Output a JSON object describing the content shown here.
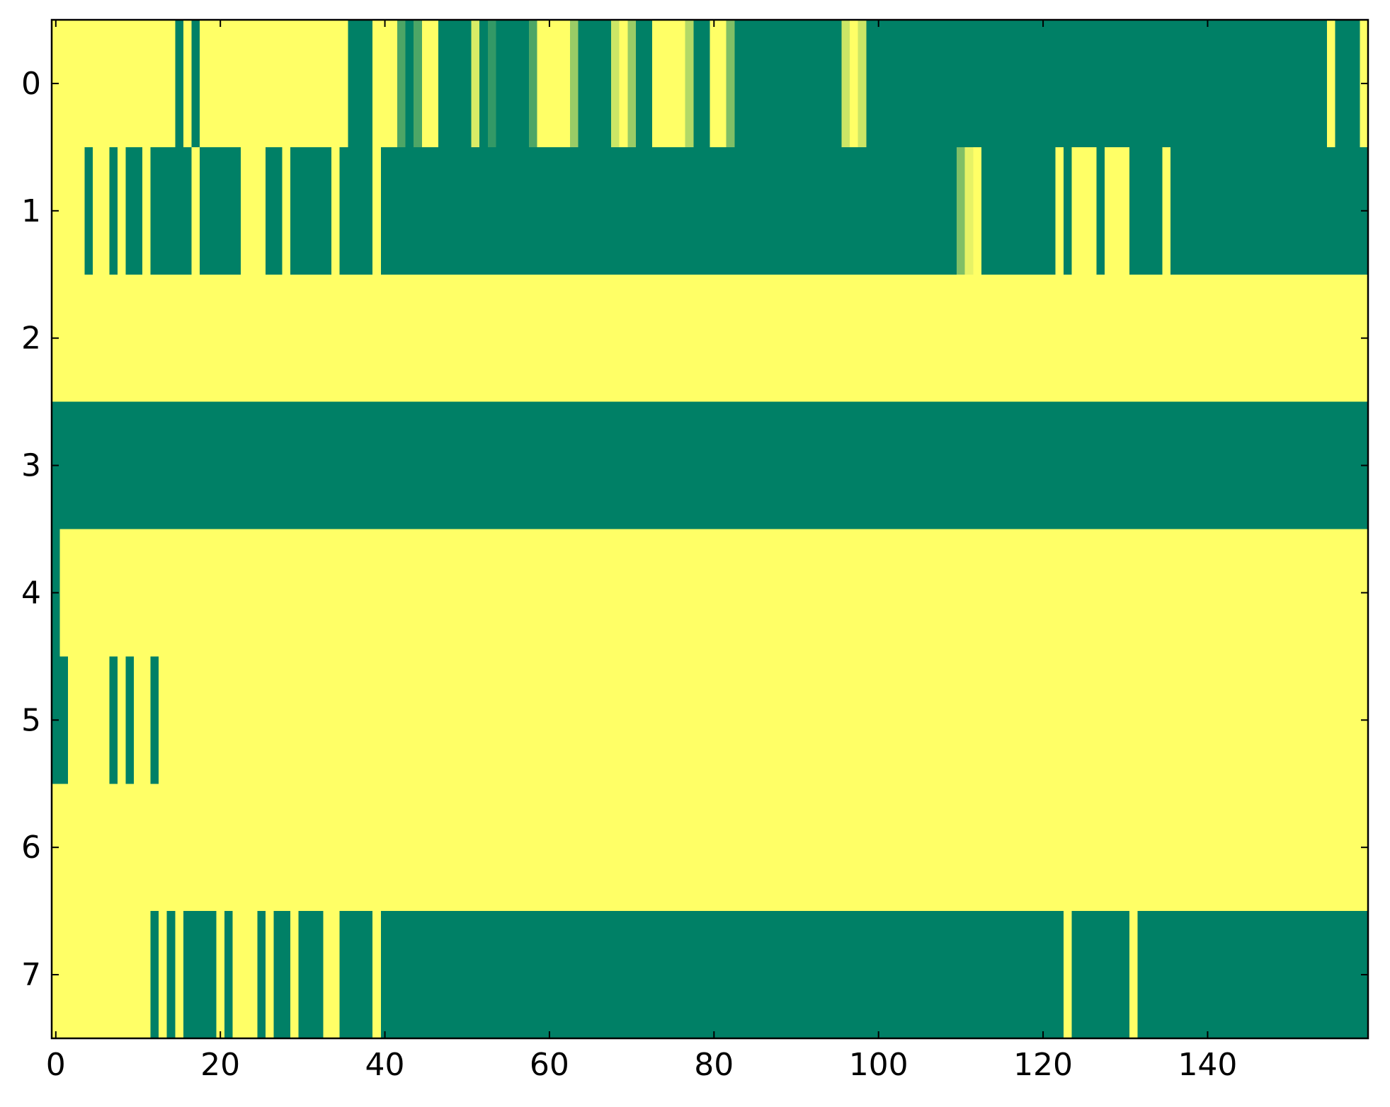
{
  "chart_data": {
    "type": "heatmap",
    "colormap": "summer",
    "xlim": [
      -0.5,
      159.5
    ],
    "ylim": [
      7.5,
      -0.5
    ],
    "xticks": [
      0,
      20,
      40,
      60,
      80,
      100,
      120,
      140
    ],
    "yticks": [
      0,
      1,
      2,
      3,
      4,
      5,
      6,
      7
    ],
    "z": [
      [
        1,
        1,
        1,
        1,
        1,
        1,
        1,
        1,
        1,
        1,
        1,
        1,
        1,
        1,
        1,
        0,
        1,
        0,
        1,
        1,
        1,
        1,
        1,
        1,
        1,
        1,
        1,
        1,
        1,
        1,
        1,
        1,
        1,
        1,
        1,
        1,
        0,
        0,
        0,
        1,
        1,
        1,
        0.3,
        0,
        0.3,
        1,
        1,
        0,
        0,
        0,
        0,
        0.85,
        0,
        0.2,
        0,
        0,
        0,
        0,
        0.3,
        1,
        1,
        1,
        1,
        0.6,
        0,
        0,
        0,
        0,
        0.8,
        1,
        0.6,
        0,
        0,
        1,
        1,
        1,
        1,
        0.7,
        0,
        0,
        1,
        1,
        0.5,
        0,
        0,
        0,
        0,
        0,
        0,
        0,
        0,
        0,
        0,
        0,
        0,
        0,
        0.8,
        1,
        0.8,
        0,
        0,
        0,
        0,
        0,
        0,
        0,
        0,
        0,
        0,
        0,
        0,
        0,
        0,
        0,
        0,
        0,
        0,
        0,
        0,
        0,
        0,
        0,
        0,
        0,
        0,
        0,
        0,
        0,
        0,
        0,
        0,
        0,
        0,
        0,
        0,
        0,
        0,
        0,
        0,
        0,
        0,
        0,
        0,
        0,
        0,
        0,
        0,
        0,
        0,
        0,
        0,
        0,
        0,
        0,
        0,
        1,
        0,
        0,
        0,
        1
      ],
      [
        1,
        1,
        1,
        1,
        0,
        1,
        1,
        0,
        1,
        0,
        0,
        1,
        0,
        0,
        0,
        0,
        0,
        1,
        0,
        0,
        0,
        0,
        0,
        1,
        1,
        1,
        0,
        0,
        1,
        0,
        0,
        0,
        0,
        0,
        1,
        0,
        0,
        0,
        0,
        1,
        0,
        0,
        0,
        0,
        0,
        0,
        0,
        0,
        0,
        0,
        0,
        0,
        0,
        0,
        0,
        0,
        0,
        0,
        0,
        0,
        0,
        0,
        0,
        0,
        0,
        0,
        0,
        0,
        0,
        0,
        0,
        0,
        0,
        0,
        0,
        0,
        0,
        0,
        0,
        0,
        0,
        0,
        0,
        0,
        0,
        0,
        0,
        0,
        0,
        0,
        0,
        0,
        0,
        0,
        0,
        0,
        0,
        0,
        0,
        0,
        0,
        0,
        0,
        0,
        0,
        0,
        0,
        0,
        0,
        0,
        0.5,
        0.9,
        1,
        0,
        0,
        0,
        0,
        0,
        0,
        0,
        0,
        0,
        1,
        0,
        1,
        1,
        1,
        0,
        1,
        1,
        1,
        0,
        0,
        0,
        0,
        1,
        0,
        0,
        0,
        0,
        0,
        0,
        0,
        0,
        0,
        0,
        0,
        0,
        0,
        0,
        0,
        0,
        0,
        0,
        0,
        0,
        0,
        0,
        0,
        0
      ],
      [
        1,
        1,
        1,
        1,
        1,
        1,
        1,
        1,
        1,
        1,
        1,
        1,
        1,
        1,
        1,
        1,
        1,
        1,
        1,
        1,
        1,
        1,
        1,
        1,
        1,
        1,
        1,
        1,
        1,
        1,
        1,
        1,
        1,
        1,
        1,
        1,
        1,
        1,
        1,
        1,
        1,
        1,
        1,
        1,
        1,
        1,
        1,
        1,
        1,
        1,
        1,
        1,
        1,
        1,
        1,
        1,
        1,
        1,
        1,
        1,
        1,
        1,
        1,
        1,
        1,
        1,
        1,
        1,
        1,
        1,
        1,
        1,
        1,
        1,
        1,
        1,
        1,
        1,
        1,
        1,
        1,
        1,
        1,
        1,
        1,
        1,
        1,
        1,
        1,
        1,
        1,
        1,
        1,
        1,
        1,
        1,
        1,
        1,
        1,
        1,
        1,
        1,
        1,
        1,
        1,
        1,
        1,
        1,
        1,
        1,
        1,
        1,
        1,
        1,
        1,
        1,
        1,
        1,
        1,
        1,
        1,
        1,
        1,
        1,
        1,
        1,
        1,
        1,
        1,
        1,
        1,
        1,
        1,
        1,
        1,
        1,
        1,
        1,
        1,
        1,
        1,
        1,
        1,
        1,
        1,
        1,
        1,
        1,
        1,
        1,
        1,
        1,
        1,
        1,
        1,
        1,
        1,
        1,
        1,
        1
      ],
      [
        0,
        0,
        0,
        0,
        0,
        0,
        0,
        0,
        0,
        0,
        0,
        0,
        0,
        0,
        0,
        0,
        0,
        0,
        0,
        0,
        0,
        0,
        0,
        0,
        0,
        0,
        0,
        0,
        0,
        0,
        0,
        0,
        0,
        0,
        0,
        0,
        0,
        0,
        0,
        0,
        0,
        0,
        0,
        0,
        0,
        0,
        0,
        0,
        0,
        0,
        0,
        0,
        0,
        0,
        0,
        0,
        0,
        0,
        0,
        0,
        0,
        0,
        0,
        0,
        0,
        0,
        0,
        0,
        0,
        0,
        0,
        0,
        0,
        0,
        0,
        0,
        0,
        0,
        0,
        0,
        0,
        0,
        0,
        0,
        0,
        0,
        0,
        0,
        0,
        0,
        0,
        0,
        0,
        0,
        0,
        0,
        0,
        0,
        0,
        0,
        0,
        0,
        0,
        0,
        0,
        0,
        0,
        0,
        0,
        0,
        0,
        0,
        0,
        0,
        0,
        0,
        0,
        0,
        0,
        0,
        0,
        0,
        0,
        0,
        0,
        0,
        0,
        0,
        0,
        0,
        0,
        0,
        0,
        0,
        0,
        0,
        0,
        0,
        0,
        0,
        0,
        0,
        0,
        0,
        0,
        0,
        0,
        0,
        0,
        0,
        0,
        0,
        0,
        0,
        0,
        0,
        0,
        0,
        0,
        0
      ],
      [
        0,
        1,
        1,
        1,
        1,
        1,
        1,
        1,
        1,
        1,
        1,
        1,
        1,
        1,
        1,
        1,
        1,
        1,
        1,
        1,
        1,
        1,
        1,
        1,
        1,
        1,
        1,
        1,
        1,
        1,
        1,
        1,
        1,
        1,
        1,
        1,
        1,
        1,
        1,
        1,
        1,
        1,
        1,
        1,
        1,
        1,
        1,
        1,
        1,
        1,
        1,
        1,
        1,
        1,
        1,
        1,
        1,
        1,
        1,
        1,
        1,
        1,
        1,
        1,
        1,
        1,
        1,
        1,
        1,
        1,
        1,
        1,
        1,
        1,
        1,
        1,
        1,
        1,
        1,
        1,
        1,
        1,
        1,
        1,
        1,
        1,
        1,
        1,
        1,
        1,
        1,
        1,
        1,
        1,
        1,
        1,
        1,
        1,
        1,
        1,
        1,
        1,
        1,
        1,
        1,
        1,
        1,
        1,
        1,
        1,
        1,
        1,
        1,
        1,
        1,
        1,
        1,
        1,
        1,
        1,
        1,
        1,
        1,
        1,
        1,
        1,
        1,
        1,
        1,
        1,
        1,
        1,
        1,
        1,
        1,
        1,
        1,
        1,
        1,
        1,
        1,
        1,
        1,
        1,
        1,
        1,
        1,
        1,
        1,
        1,
        1,
        1,
        1,
        1,
        1,
        1,
        1,
        1,
        1,
        1
      ],
      [
        0,
        0,
        1,
        1,
        1,
        1,
        1,
        0,
        1,
        0,
        1,
        1,
        0,
        1,
        1,
        1,
        1,
        1,
        1,
        1,
        1,
        1,
        1,
        1,
        1,
        1,
        1,
        1,
        1,
        1,
        1,
        1,
        1,
        1,
        1,
        1,
        1,
        1,
        1,
        1,
        1,
        1,
        1,
        1,
        1,
        1,
        1,
        1,
        1,
        1,
        1,
        1,
        1,
        1,
        1,
        1,
        1,
        1,
        1,
        1,
        1,
        1,
        1,
        1,
        1,
        1,
        1,
        1,
        1,
        1,
        1,
        1,
        1,
        1,
        1,
        1,
        1,
        1,
        1,
        1,
        1,
        1,
        1,
        1,
        1,
        1,
        1,
        1,
        1,
        1,
        1,
        1,
        1,
        1,
        1,
        1,
        1,
        1,
        1,
        1,
        1,
        1,
        1,
        1,
        1,
        1,
        1,
        1,
        1,
        1,
        1,
        1,
        1,
        1,
        1,
        1,
        1,
        1,
        1,
        1,
        1,
        1,
        1,
        1,
        1,
        1,
        1,
        1,
        1,
        1,
        1,
        1,
        1,
        1,
        1,
        1,
        1,
        1,
        1,
        1,
        1,
        1,
        1,
        1,
        1,
        1,
        1,
        1,
        1,
        1,
        1,
        1,
        1,
        1,
        1,
        1,
        1,
        1,
        1,
        1
      ],
      [
        1,
        1,
        1,
        1,
        1,
        1,
        1,
        1,
        1,
        1,
        1,
        1,
        1,
        1,
        1,
        1,
        1,
        1,
        1,
        1,
        1,
        1,
        1,
        1,
        1,
        1,
        1,
        1,
        1,
        1,
        1,
        1,
        1,
        1,
        1,
        1,
        1,
        1,
        1,
        1,
        1,
        1,
        1,
        1,
        1,
        1,
        1,
        1,
        1,
        1,
        1,
        1,
        1,
        1,
        1,
        1,
        1,
        1,
        1,
        1,
        1,
        1,
        1,
        1,
        1,
        1,
        1,
        1,
        1,
        1,
        1,
        1,
        1,
        1,
        1,
        1,
        1,
        1,
        1,
        1,
        1,
        1,
        1,
        1,
        1,
        1,
        1,
        1,
        1,
        1,
        1,
        1,
        1,
        1,
        1,
        1,
        1,
        1,
        1,
        1,
        1,
        1,
        1,
        1,
        1,
        1,
        1,
        1,
        1,
        1,
        1,
        1,
        1,
        1,
        1,
        1,
        1,
        1,
        1,
        1,
        1,
        1,
        1,
        1,
        1,
        1,
        1,
        1,
        1,
        1,
        1,
        1,
        1,
        1,
        1,
        1,
        1,
        1,
        1,
        1,
        1,
        1,
        1,
        1,
        1,
        1,
        1,
        1,
        1,
        1,
        1,
        1,
        1,
        1,
        1,
        1,
        1,
        1,
        1,
        1
      ],
      [
        1,
        1,
        1,
        1,
        1,
        1,
        1,
        1,
        1,
        1,
        1,
        1,
        0,
        1,
        0,
        1,
        0,
        0,
        0,
        0,
        1,
        0,
        1,
        1,
        1,
        0,
        1,
        0,
        0,
        1,
        0,
        0,
        0,
        1,
        1,
        0,
        0,
        0,
        0,
        1,
        0,
        0,
        0,
        0,
        0,
        0,
        0,
        0,
        0,
        0,
        0,
        0,
        0,
        0,
        0,
        0,
        0,
        0,
        0,
        0,
        0,
        0,
        0,
        0,
        0,
        0,
        0,
        0,
        0,
        0,
        0,
        0,
        0,
        0,
        0,
        0,
        0,
        0,
        0,
        0,
        0,
        0,
        0,
        0,
        0,
        0,
        0,
        0,
        0,
        0,
        0,
        0,
        0,
        0,
        0,
        0,
        0,
        0,
        0,
        0,
        0,
        0,
        0,
        0,
        0,
        0,
        0,
        0,
        0,
        0,
        0,
        0,
        0,
        0,
        0,
        0,
        0,
        0,
        0,
        0,
        0,
        0,
        0,
        1,
        0,
        0,
        0,
        0,
        0,
        0,
        0,
        1,
        0,
        0,
        0,
        0,
        0,
        0,
        0,
        0,
        0,
        0,
        0,
        0,
        0,
        0,
        0,
        0,
        0,
        0,
        0,
        0,
        0,
        0,
        0,
        0,
        0,
        0,
        0,
        0
      ]
    ]
  }
}
